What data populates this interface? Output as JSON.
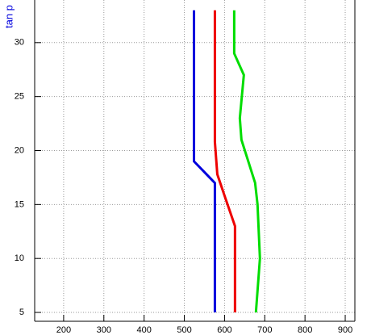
{
  "chart_data": {
    "type": "line",
    "y_label": "tan p",
    "xlim": [
      128,
      924
    ],
    "xticks": [
      200,
      300,
      400,
      500,
      600,
      700,
      800,
      900
    ],
    "ylim": [
      4.18,
      33.95
    ],
    "yticks": [
      5,
      10,
      15,
      20,
      25,
      30
    ],
    "grid": true,
    "series": [
      {
        "color": "#0000dd",
        "x": [
          576,
          576,
          524,
          524
        ],
        "y": [
          5,
          17,
          19,
          33
        ]
      },
      {
        "color": "#ee0000",
        "x": [
          626,
          626,
          602,
          582,
          576,
          576
        ],
        "y": [
          5,
          13,
          15.6,
          17.8,
          20.8,
          33
        ]
      },
      {
        "color": "#00dd00",
        "x": [
          678,
          688,
          682,
          676,
          642,
          638,
          648,
          624,
          624
        ],
        "y": [
          5,
          10,
          15,
          17,
          21,
          23,
          27,
          29,
          33
        ]
      }
    ]
  }
}
